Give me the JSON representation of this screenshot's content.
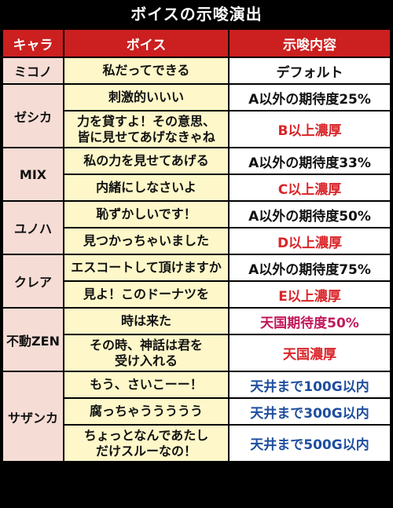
{
  "title": "ボイスの示唆演出",
  "headers": {
    "chara": "キャラ",
    "voice": "ボイス",
    "hint": "示唆内容"
  },
  "colors": {
    "header_bg": "#cc1f1f",
    "chara_bg": "#f5dcd4",
    "voice_bg": "#fdf7c9",
    "red_text": "#d9252a",
    "purple_text": "#c2185b",
    "blue_text": "#1f4e9e"
  },
  "groups": [
    {
      "chara": "ミコノ",
      "rows": [
        {
          "voice": "私だってできる",
          "hint": "デフォルト"
        }
      ]
    },
    {
      "chara": "ゼシカ",
      "rows": [
        {
          "voice": "刺激的いいい",
          "hint": "A以外の期待度25%"
        },
        {
          "voice_line1": "力を貸すよ！その意思、",
          "voice_line2": "皆に見せてあげなきゃね",
          "hint": "B以上濃厚"
        }
      ]
    },
    {
      "chara": "MIX",
      "rows": [
        {
          "voice": "私の力を見せてあげる",
          "hint": "A以外の期待度33%"
        },
        {
          "voice": "内緒にしなさいよ",
          "hint": "C以上濃厚"
        }
      ]
    },
    {
      "chara": "ユノハ",
      "rows": [
        {
          "voice": "恥ずかしいです！",
          "hint": "A以外の期待度50%"
        },
        {
          "voice": "見つかっちゃいました",
          "hint": "D以上濃厚"
        }
      ]
    },
    {
      "chara": "クレア",
      "rows": [
        {
          "voice": "エスコートして頂けますか",
          "hint": "A以外の期待度75%"
        },
        {
          "voice": "見よ！このドーナツを",
          "hint": "E以上濃厚"
        }
      ]
    },
    {
      "chara": "不動ZEN",
      "rows": [
        {
          "voice": "時は来た",
          "hint": "天国期待度50%"
        },
        {
          "voice_line1": "その時、神話は君を",
          "voice_line2": "受け入れる",
          "hint": "天国濃厚"
        }
      ]
    },
    {
      "chara": "サザンカ",
      "rows": [
        {
          "voice": "もう、さいこーー！",
          "hint": "天井まで100G以内"
        },
        {
          "voice": "腐っちゃううううう",
          "hint": "天井まで300G以内"
        },
        {
          "voice_line1": "ちょっとなんであたし",
          "voice_line2": "だけスルーなの！",
          "hint": "天井まで500G以内"
        }
      ]
    }
  ]
}
